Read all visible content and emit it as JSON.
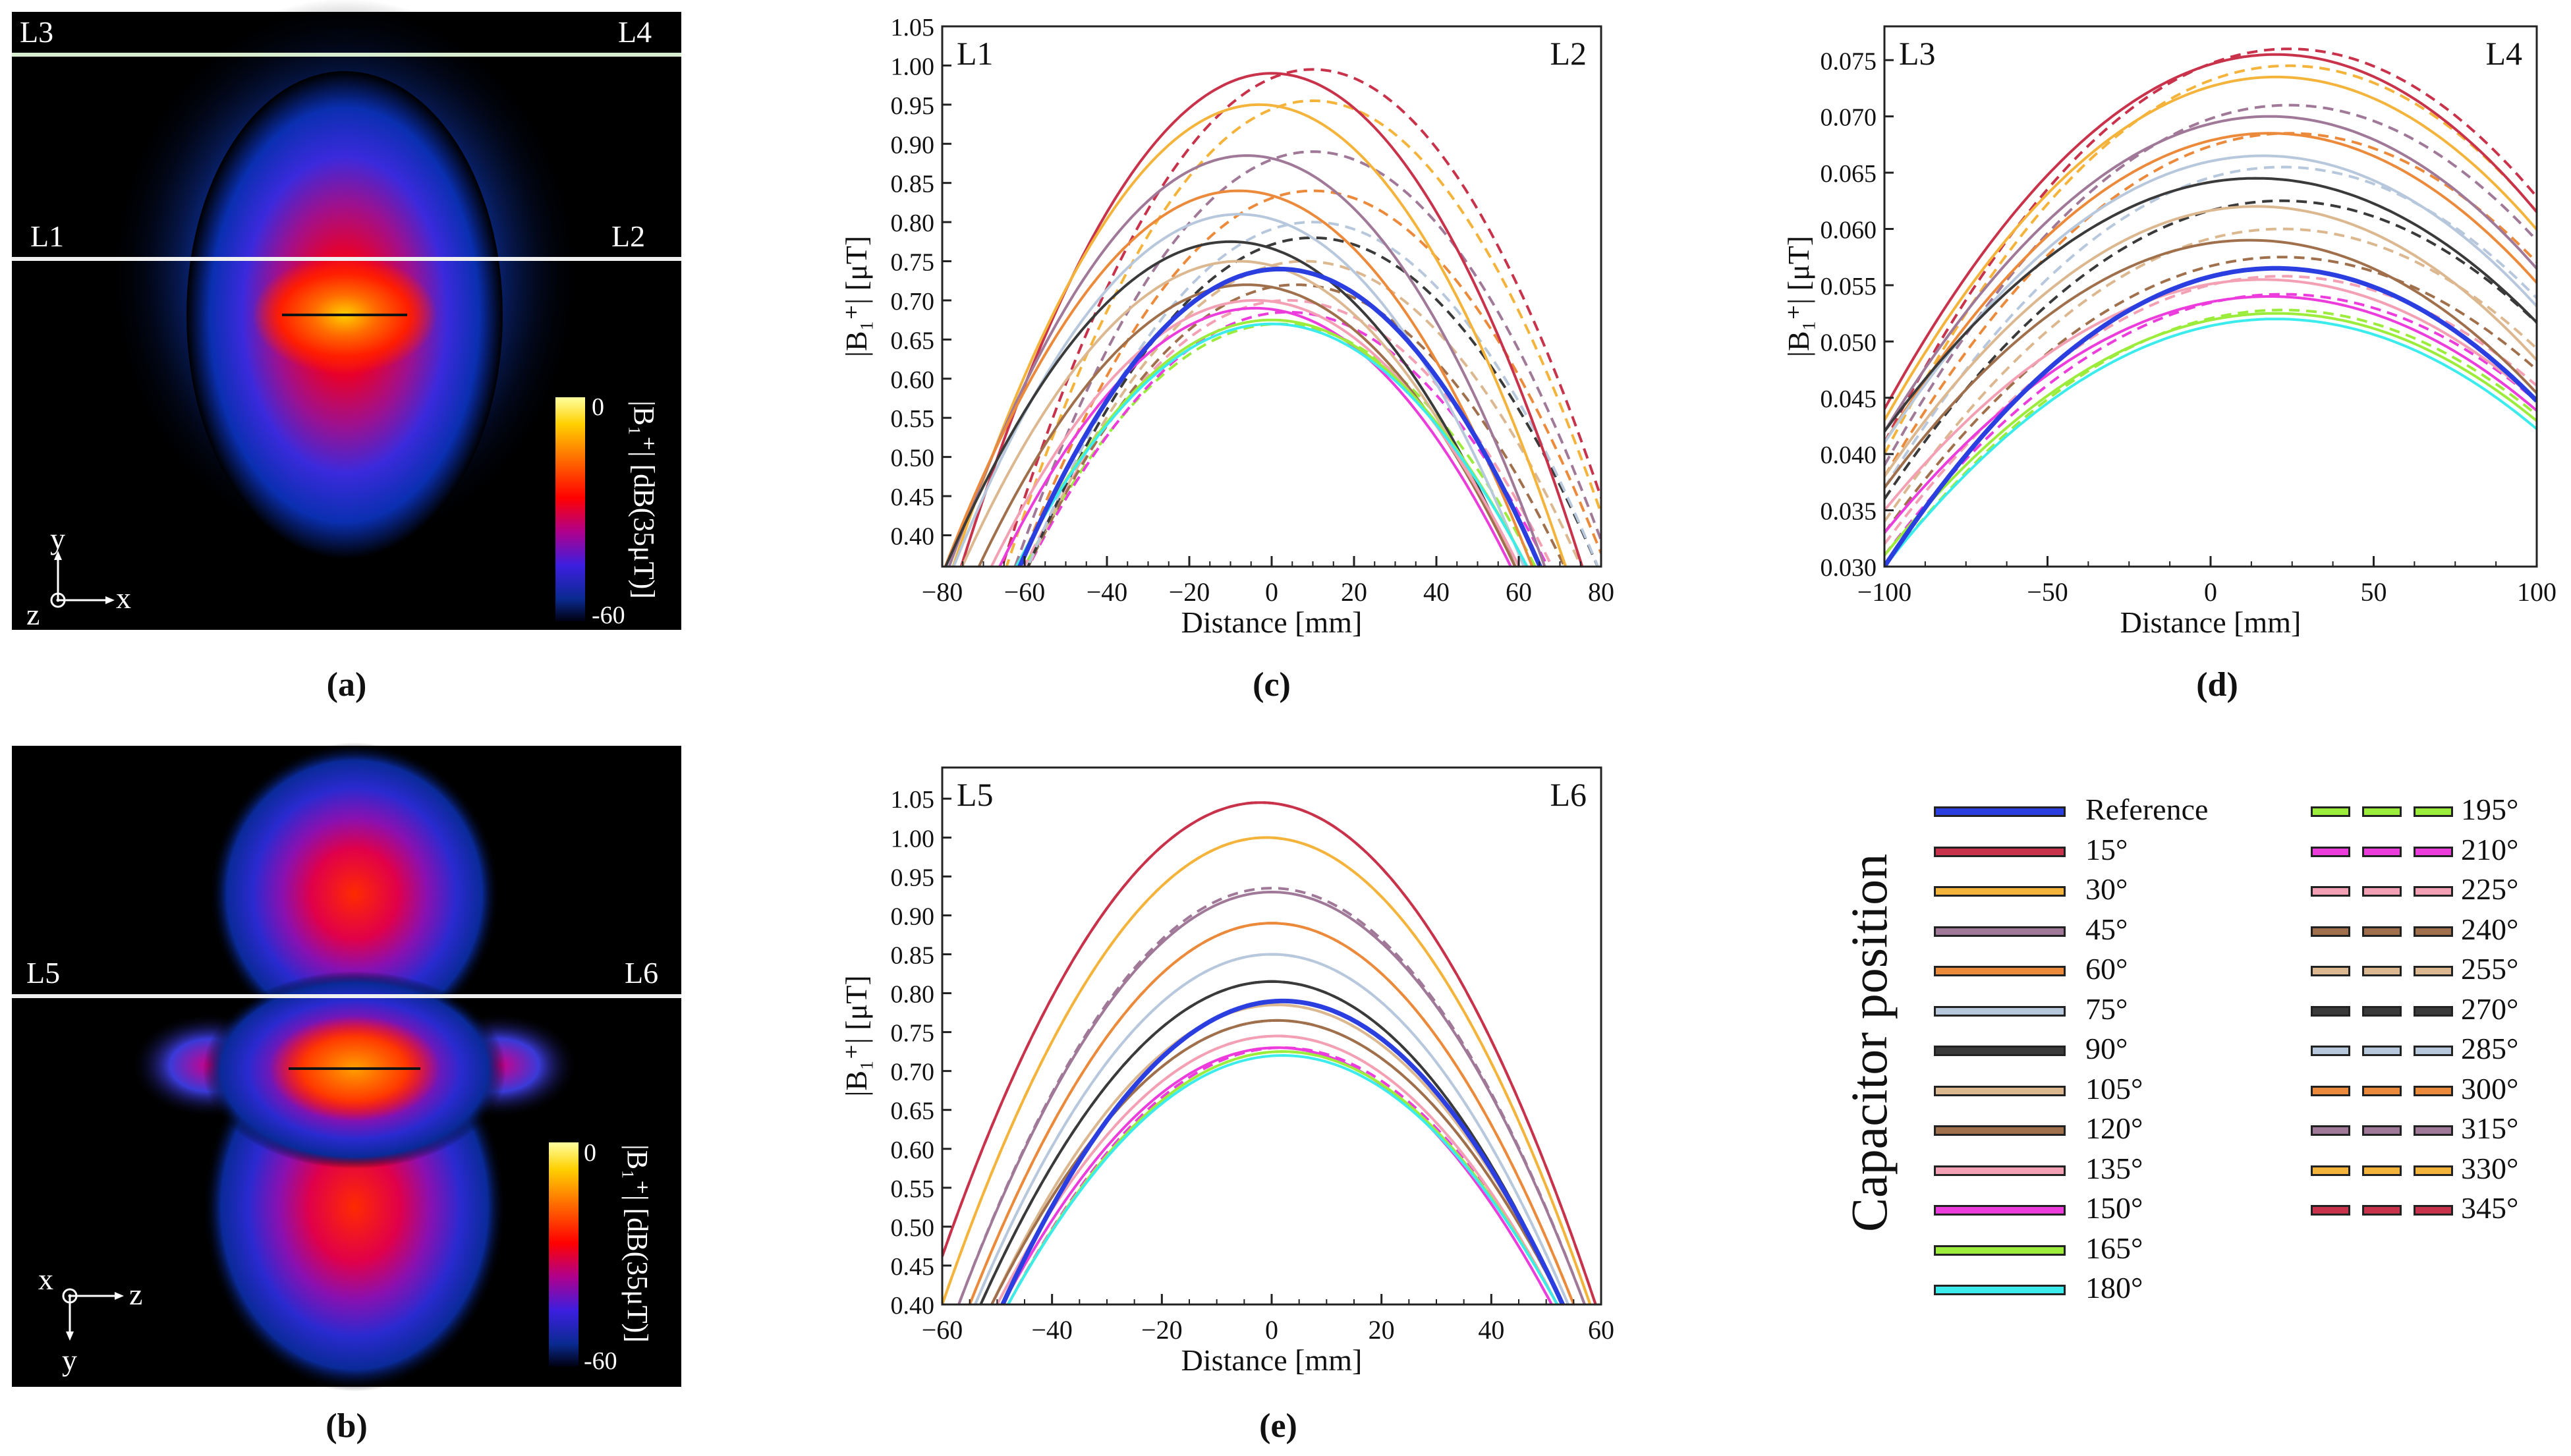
{
  "panel_labels": {
    "a": "(a)",
    "b": "(b)",
    "c": "(c)",
    "d": "(d)",
    "e": "(e)"
  },
  "field_maps": {
    "a": {
      "line_labels": {
        "l1": "L1",
        "l2": "L2",
        "l3": "L3",
        "l4": "L4"
      },
      "colorbar": {
        "max_label": "0",
        "min_label": "-60",
        "title": "|B₁⁺| [dB(35μT)]"
      },
      "axes": {
        "up": "y",
        "right": "x",
        "out": "z"
      }
    },
    "b": {
      "line_labels": {
        "l5": "L5",
        "l6": "L6"
      },
      "colorbar": {
        "max_label": "0",
        "min_label": "-60",
        "title": "|B₁⁺| [dB(35μT)]"
      },
      "axes": {
        "up": "x",
        "right": "z",
        "down": "y"
      }
    }
  },
  "legend": {
    "title": "Capacitor position",
    "col1": [
      {
        "label": "Reference",
        "color": "#2b3fe0",
        "dashed": false
      },
      {
        "label": "15°",
        "color": "#c8324a",
        "dashed": false
      },
      {
        "label": "30°",
        "color": "#f4b43c",
        "dashed": false
      },
      {
        "label": "45°",
        "color": "#a07898",
        "dashed": false
      },
      {
        "label": "60°",
        "color": "#ec8a3c",
        "dashed": false
      },
      {
        "label": "75°",
        "color": "#b8c8dc",
        "dashed": false
      },
      {
        "label": "90°",
        "color": "#3a3a3a",
        "dashed": false
      },
      {
        "label": "105°",
        "color": "#dcb890",
        "dashed": false
      },
      {
        "label": "120°",
        "color": "#a0704c",
        "dashed": false
      },
      {
        "label": "135°",
        "color": "#f4a0b4",
        "dashed": false
      },
      {
        "label": "150°",
        "color": "#ec3cdc",
        "dashed": false
      },
      {
        "label": "165°",
        "color": "#9cec3c",
        "dashed": false
      },
      {
        "label": "180°",
        "color": "#3cecec",
        "dashed": false
      }
    ],
    "col2": [
      {
        "label": "195°",
        "color": "#9cec3c",
        "dashed": true
      },
      {
        "label": "210°",
        "color": "#ec3cdc",
        "dashed": true
      },
      {
        "label": "225°",
        "color": "#f4a0b4",
        "dashed": true
      },
      {
        "label": "240°",
        "color": "#a0704c",
        "dashed": true
      },
      {
        "label": "255°",
        "color": "#dcb890",
        "dashed": true
      },
      {
        "label": "270°",
        "color": "#3a3a3a",
        "dashed": true
      },
      {
        "label": "285°",
        "color": "#b8c8dc",
        "dashed": true
      },
      {
        "label": "300°",
        "color": "#ec8a3c",
        "dashed": true
      },
      {
        "label": "315°",
        "color": "#a07898",
        "dashed": true
      },
      {
        "label": "330°",
        "color": "#f4b43c",
        "dashed": true
      },
      {
        "label": "345°",
        "color": "#c8324a",
        "dashed": true
      }
    ]
  },
  "chart_data": [
    {
      "id": "c",
      "type": "line",
      "corner_left": "L1",
      "corner_right": "L2",
      "xlabel": "Distance [mm]",
      "ylabel": "|B₁⁺| [μT]",
      "xlim": [
        -80,
        80
      ],
      "ylim": [
        0.36,
        1.05
      ],
      "xticks": [
        -80,
        -60,
        -40,
        -20,
        0,
        20,
        40,
        60,
        80
      ],
      "xtick_labels": [
        "−80",
        "−60",
        "−40",
        "−20",
        "0",
        "20",
        "40",
        "60",
        "80"
      ],
      "yticks": [
        0.4,
        0.45,
        0.5,
        0.55,
        0.6,
        0.65,
        0.7,
        0.75,
        0.8,
        0.85,
        0.9,
        0.95,
        1.0,
        1.05
      ],
      "ytick_labels": [
        "0.40",
        "0.45",
        "0.50",
        "0.55",
        "0.60",
        "0.65",
        "0.70",
        "0.75",
        "0.80",
        "0.85",
        "0.90",
        "0.95",
        "1.00",
        "1.05"
      ],
      "curve_model": "parabola: y = peak - (peak - 0.35) * ((x - center)/half_width)^2",
      "series": [
        {
          "name": "Reference",
          "color": "#2b3fe0",
          "dashed": false,
          "bold": true,
          "peak": 0.74,
          "center": 2,
          "half_width": 64
        },
        {
          "name": "15°",
          "color": "#c8324a",
          "dashed": false,
          "peak": 0.99,
          "center": 0,
          "half_width": 76
        },
        {
          "name": "30°",
          "color": "#f4b43c",
          "dashed": false,
          "peak": 0.95,
          "center": -3,
          "half_width": 75
        },
        {
          "name": "45°",
          "color": "#a07898",
          "dashed": false,
          "peak": 0.885,
          "center": -6,
          "half_width": 73
        },
        {
          "name": "60°",
          "color": "#ec8a3c",
          "dashed": false,
          "peak": 0.84,
          "center": -8,
          "half_width": 72
        },
        {
          "name": "75°",
          "color": "#b8c8dc",
          "dashed": false,
          "peak": 0.81,
          "center": -8,
          "half_width": 70
        },
        {
          "name": "90°",
          "color": "#3a3a3a",
          "dashed": false,
          "peak": 0.775,
          "center": -10,
          "half_width": 70
        },
        {
          "name": "105°",
          "color": "#dcb890",
          "dashed": false,
          "peak": 0.75,
          "center": -8,
          "half_width": 68
        },
        {
          "name": "120°",
          "color": "#a0704c",
          "dashed": false,
          "peak": 0.72,
          "center": -6,
          "half_width": 66
        },
        {
          "name": "135°",
          "color": "#f4a0b4",
          "dashed": false,
          "peak": 0.7,
          "center": -4,
          "half_width": 65
        },
        {
          "name": "150°",
          "color": "#ec3cdc",
          "dashed": false,
          "peak": 0.69,
          "center": -4,
          "half_width": 63
        },
        {
          "name": "165°",
          "color": "#9cec3c",
          "dashed": false,
          "peak": 0.675,
          "center": 0,
          "half_width": 63
        },
        {
          "name": "180°",
          "color": "#3cecec",
          "dashed": false,
          "peak": 0.67,
          "center": 0,
          "half_width": 63
        },
        {
          "name": "195°",
          "color": "#9cec3c",
          "dashed": true,
          "peak": 0.67,
          "center": 2,
          "half_width": 63
        },
        {
          "name": "210°",
          "color": "#ec3cdc",
          "dashed": true,
          "peak": 0.685,
          "center": 4,
          "half_width": 64
        },
        {
          "name": "225°",
          "color": "#f4a0b4",
          "dashed": true,
          "peak": 0.7,
          "center": 4,
          "half_width": 65
        },
        {
          "name": "240°",
          "color": "#a0704c",
          "dashed": true,
          "peak": 0.72,
          "center": 6,
          "half_width": 66
        },
        {
          "name": "255°",
          "color": "#dcb890",
          "dashed": true,
          "peak": 0.75,
          "center": 8,
          "half_width": 68
        },
        {
          "name": "270°",
          "color": "#3a3a3a",
          "dashed": true,
          "peak": 0.78,
          "center": 10,
          "half_width": 70
        },
        {
          "name": "285°",
          "color": "#b8c8dc",
          "dashed": true,
          "peak": 0.8,
          "center": 10,
          "half_width": 70
        },
        {
          "name": "300°",
          "color": "#ec8a3c",
          "dashed": true,
          "peak": 0.84,
          "center": 10,
          "half_width": 72
        },
        {
          "name": "315°",
          "color": "#a07898",
          "dashed": true,
          "peak": 0.89,
          "center": 10,
          "half_width": 73
        },
        {
          "name": "330°",
          "color": "#f4b43c",
          "dashed": true,
          "peak": 0.955,
          "center": 10,
          "half_width": 75
        },
        {
          "name": "345°",
          "color": "#c8324a",
          "dashed": true,
          "peak": 0.995,
          "center": 10,
          "half_width": 76
        }
      ]
    },
    {
      "id": "d",
      "type": "line",
      "corner_left": "L3",
      "corner_right": "L4",
      "xlabel": "Distance [mm]",
      "ylabel": "|B₁⁺| [μT]",
      "xlim": [
        -100,
        100
      ],
      "ylim": [
        0.03,
        0.078
      ],
      "xticks": [
        -100,
        -50,
        0,
        50,
        100
      ],
      "xtick_labels": [
        "−100",
        "−50",
        "0",
        "50",
        "100"
      ],
      "yticks": [
        0.03,
        0.035,
        0.04,
        0.045,
        0.05,
        0.055,
        0.06,
        0.065,
        0.07,
        0.075
      ],
      "ytick_labels": [
        "0.030",
        "0.035",
        "0.040",
        "0.045",
        "0.050",
        "0.055",
        "0.060",
        "0.065",
        "0.070",
        "0.075"
      ],
      "curve_model": "peak - k*(x-center)^2 with k from value at x=-100",
      "series": [
        {
          "name": "Reference",
          "color": "#2b3fe0",
          "dashed": false,
          "bold": true,
          "peak": 0.0565,
          "center": 20,
          "y_at_min": 0.03
        },
        {
          "name": "15°",
          "color": "#c8324a",
          "dashed": false,
          "peak": 0.0755,
          "center": 20,
          "y_at_min": 0.044
        },
        {
          "name": "30°",
          "color": "#f4b43c",
          "dashed": false,
          "peak": 0.0735,
          "center": 20,
          "y_at_min": 0.043
        },
        {
          "name": "45°",
          "color": "#a07898",
          "dashed": false,
          "peak": 0.07,
          "center": 18,
          "y_at_min": 0.042
        },
        {
          "name": "60°",
          "color": "#ec8a3c",
          "dashed": false,
          "peak": 0.0685,
          "center": 18,
          "y_at_min": 0.041
        },
        {
          "name": "75°",
          "color": "#b8c8dc",
          "dashed": false,
          "peak": 0.0665,
          "center": 16,
          "y_at_min": 0.041
        },
        {
          "name": "90°",
          "color": "#3a3a3a",
          "dashed": false,
          "peak": 0.0645,
          "center": 14,
          "y_at_min": 0.042
        },
        {
          "name": "105°",
          "color": "#dcb890",
          "dashed": false,
          "peak": 0.062,
          "center": 14,
          "y_at_min": 0.038
        },
        {
          "name": "120°",
          "color": "#a0704c",
          "dashed": false,
          "peak": 0.059,
          "center": 12,
          "y_at_min": 0.037
        },
        {
          "name": "135°",
          "color": "#f4a0b4",
          "dashed": false,
          "peak": 0.0555,
          "center": 16,
          "y_at_min": 0.035
        },
        {
          "name": "150°",
          "color": "#ec3cdc",
          "dashed": false,
          "peak": 0.054,
          "center": 18,
          "y_at_min": 0.033
        },
        {
          "name": "165°",
          "color": "#9cec3c",
          "dashed": false,
          "peak": 0.0525,
          "center": 20,
          "y_at_min": 0.031
        },
        {
          "name": "180°",
          "color": "#3cecec",
          "dashed": false,
          "peak": 0.052,
          "center": 20,
          "y_at_min": 0.03
        },
        {
          "name": "195°",
          "color": "#9cec3c",
          "dashed": true,
          "peak": 0.0528,
          "center": 22,
          "y_at_min": 0.03
        },
        {
          "name": "210°",
          "color": "#ec3cdc",
          "dashed": true,
          "peak": 0.0542,
          "center": 22,
          "y_at_min": 0.031
        },
        {
          "name": "225°",
          "color": "#f4a0b4",
          "dashed": true,
          "peak": 0.0558,
          "center": 22,
          "y_at_min": 0.032
        },
        {
          "name": "240°",
          "color": "#a0704c",
          "dashed": true,
          "peak": 0.0575,
          "center": 22,
          "y_at_min": 0.033
        },
        {
          "name": "255°",
          "color": "#dcb890",
          "dashed": true,
          "peak": 0.06,
          "center": 22,
          "y_at_min": 0.034
        },
        {
          "name": "270°",
          "color": "#3a3a3a",
          "dashed": true,
          "peak": 0.0625,
          "center": 22,
          "y_at_min": 0.036
        },
        {
          "name": "285°",
          "color": "#b8c8dc",
          "dashed": true,
          "peak": 0.0655,
          "center": 22,
          "y_at_min": 0.037
        },
        {
          "name": "300°",
          "color": "#ec8a3c",
          "dashed": true,
          "peak": 0.0685,
          "center": 24,
          "y_at_min": 0.038
        },
        {
          "name": "315°",
          "color": "#a07898",
          "dashed": true,
          "peak": 0.071,
          "center": 24,
          "y_at_min": 0.039
        },
        {
          "name": "330°",
          "color": "#f4b43c",
          "dashed": true,
          "peak": 0.0745,
          "center": 24,
          "y_at_min": 0.04
        },
        {
          "name": "345°",
          "color": "#c8324a",
          "dashed": true,
          "peak": 0.076,
          "center": 24,
          "y_at_min": 0.041
        }
      ]
    },
    {
      "id": "e",
      "type": "line",
      "corner_left": "L5",
      "corner_right": "L6",
      "xlabel": "Distance [mm]",
      "ylabel": "|B₁⁺| [μT]",
      "xlim": [
        -60,
        60
      ],
      "ylim": [
        0.4,
        1.09
      ],
      "xticks": [
        -60,
        -40,
        -20,
        0,
        20,
        40,
        60
      ],
      "xtick_labels": [
        "−60",
        "−40",
        "−20",
        "0",
        "20",
        "40",
        "60"
      ],
      "yticks": [
        0.4,
        0.45,
        0.5,
        0.55,
        0.6,
        0.65,
        0.7,
        0.75,
        0.8,
        0.85,
        0.9,
        0.95,
        1.0,
        1.05
      ],
      "ytick_labels": [
        "0.40",
        "0.45",
        "0.50",
        "0.55",
        "0.60",
        "0.65",
        "0.70",
        "0.75",
        "0.80",
        "0.85",
        "0.90",
        "0.95",
        "1.00",
        "1.05"
      ],
      "curve_model": "parabola: y = peak - (peak - 0.40) * ((x - center)/half_width)^2",
      "series": [
        {
          "name": "Reference",
          "color": "#2b3fe0",
          "dashed": false,
          "bold": true,
          "peak": 0.79,
          "center": 2,
          "half_width": 51
        },
        {
          "name": "15°",
          "color": "#c8324a",
          "dashed": false,
          "peak": 1.045,
          "center": -2,
          "half_width": 61
        },
        {
          "name": "30°",
          "color": "#f4b43c",
          "dashed": false,
          "peak": 1.0,
          "center": -1,
          "half_width": 59
        },
        {
          "name": "45°",
          "color": "#a07898",
          "dashed": false,
          "peak": 0.93,
          "center": 0,
          "half_width": 57
        },
        {
          "name": "60°",
          "color": "#ec8a3c",
          "dashed": false,
          "peak": 0.89,
          "center": 0,
          "half_width": 55
        },
        {
          "name": "75°",
          "color": "#b8c8dc",
          "dashed": false,
          "peak": 0.85,
          "center": 0,
          "half_width": 54
        },
        {
          "name": "90°",
          "color": "#3a3a3a",
          "dashed": false,
          "peak": 0.815,
          "center": 0,
          "half_width": 53
        },
        {
          "name": "105°",
          "color": "#dcb890",
          "dashed": false,
          "peak": 0.785,
          "center": 1,
          "half_width": 52
        },
        {
          "name": "120°",
          "color": "#a0704c",
          "dashed": false,
          "peak": 0.765,
          "center": 1,
          "half_width": 52
        },
        {
          "name": "135°",
          "color": "#f4a0b4",
          "dashed": false,
          "peak": 0.745,
          "center": 1,
          "half_width": 51
        },
        {
          "name": "150°",
          "color": "#ec3cdc",
          "dashed": false,
          "peak": 0.73,
          "center": 1,
          "half_width": 50
        },
        {
          "name": "165°",
          "color": "#9cec3c",
          "dashed": false,
          "peak": 0.725,
          "center": 2,
          "half_width": 50
        },
        {
          "name": "180°",
          "color": "#3cecec",
          "dashed": false,
          "peak": 0.72,
          "center": 2,
          "half_width": 50
        },
        {
          "name": "195°",
          "color": "#9cec3c",
          "dashed": true,
          "peak": 0.725,
          "center": 2,
          "half_width": 50
        },
        {
          "name": "210°",
          "color": "#ec3cdc",
          "dashed": true,
          "peak": 0.73,
          "center": 2,
          "half_width": 50
        },
        {
          "name": "225°",
          "color": "#f4a0b4",
          "dashed": true,
          "peak": 0.745,
          "center": 1,
          "half_width": 51
        },
        {
          "name": "240°",
          "color": "#a0704c",
          "dashed": true,
          "peak": 0.765,
          "center": 1,
          "half_width": 52
        },
        {
          "name": "255°",
          "color": "#dcb890",
          "dashed": true,
          "peak": 0.785,
          "center": 1,
          "half_width": 52
        },
        {
          "name": "270°",
          "color": "#3a3a3a",
          "dashed": true,
          "peak": 0.815,
          "center": 0,
          "half_width": 53
        },
        {
          "name": "285°",
          "color": "#b8c8dc",
          "dashed": true,
          "peak": 0.85,
          "center": 0,
          "half_width": 54
        },
        {
          "name": "300°",
          "color": "#ec8a3c",
          "dashed": true,
          "peak": 0.89,
          "center": 0,
          "half_width": 55
        },
        {
          "name": "315°",
          "color": "#a07898",
          "dashed": true,
          "peak": 0.935,
          "center": 0,
          "half_width": 57
        },
        {
          "name": "330°",
          "color": "#f4b43c",
          "dashed": true,
          "peak": 1.0,
          "center": -1,
          "half_width": 59
        },
        {
          "name": "345°",
          "color": "#c8324a",
          "dashed": true,
          "peak": 1.045,
          "center": -2,
          "half_width": 61
        }
      ]
    }
  ]
}
